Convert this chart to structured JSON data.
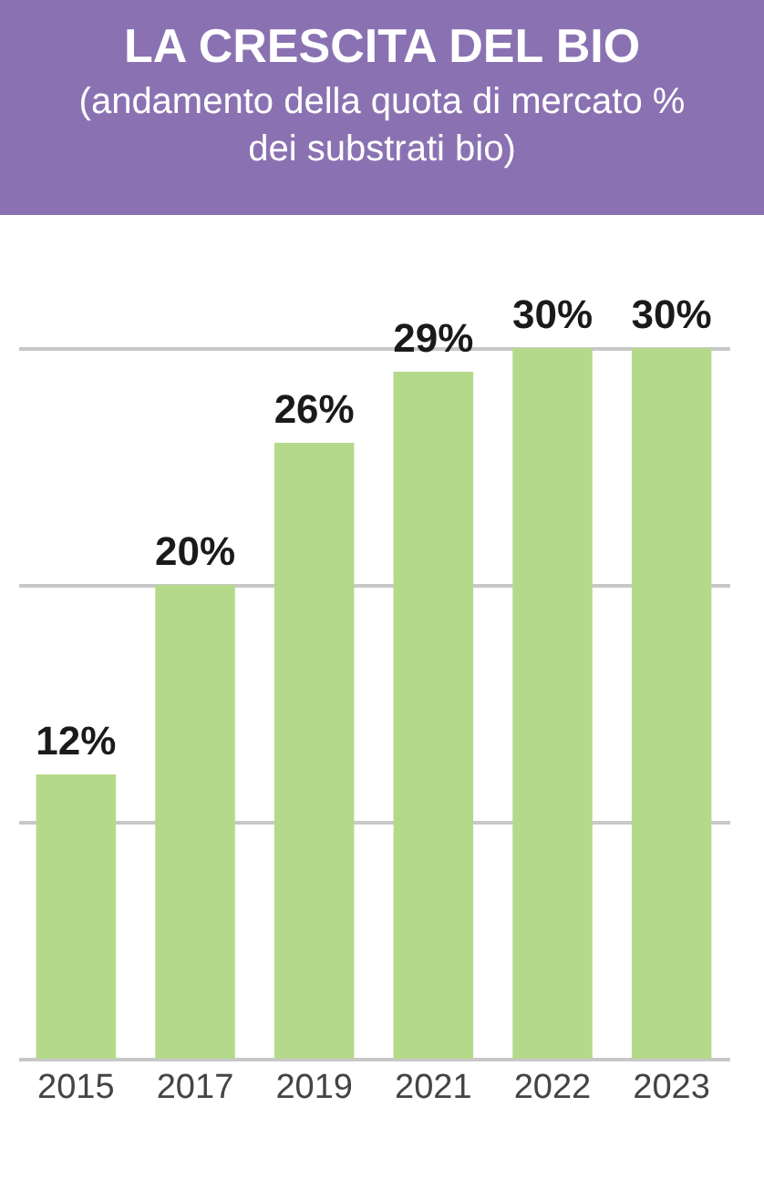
{
  "chart_data": {
    "type": "bar",
    "title": "LA CRESCITA DEL BIO",
    "subtitle": "(andamento della quota di mercato % dei substrati bio)",
    "categories": [
      "2015",
      "2017",
      "2019",
      "2021",
      "2022",
      "2023"
    ],
    "values": [
      12,
      20,
      26,
      29,
      30,
      30
    ],
    "color": "#b5d98a",
    "value_labels": [
      "12%",
      "20%",
      "26%",
      "29%",
      "30%",
      "30%"
    ],
    "ylim": [
      0,
      30
    ],
    "yticks": [
      {
        "value": 10,
        "label": null
      },
      {
        "value": 20,
        "label": null
      },
      {
        "value": 30,
        "label": null
      }
    ],
    "grid": "y",
    "tick_labels": "x"
  }
}
